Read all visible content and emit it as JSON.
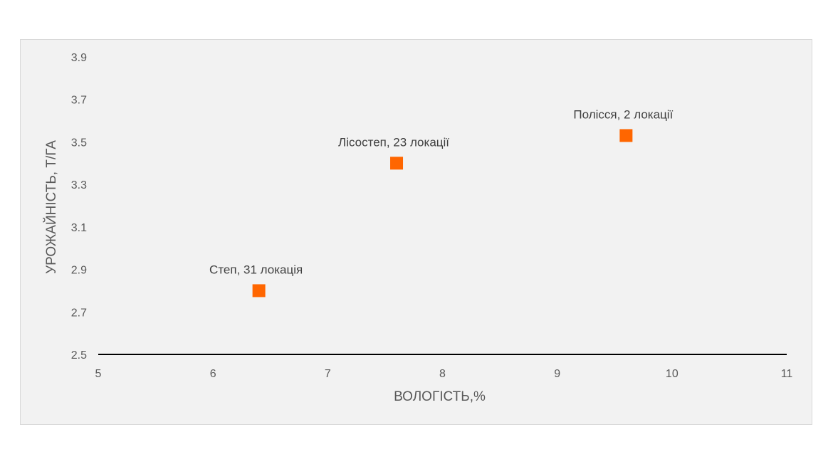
{
  "chart_data": {
    "type": "scatter",
    "title": "",
    "xlabel": "ВОЛОГІСТЬ,%",
    "ylabel": "УРОЖАЙНІСТЬ, Т/ГА",
    "xlim": [
      5,
      11
    ],
    "ylim": [
      2.5,
      3.9
    ],
    "xticks": [
      "5",
      "6",
      "7",
      "8",
      "9",
      "10",
      "11"
    ],
    "yticks": [
      "2.5",
      "2.7",
      "2.9",
      "3.1",
      "3.3",
      "3.5",
      "3.7",
      "3.9"
    ],
    "grid": false,
    "legend": "none",
    "marker": "square",
    "color": "#ff6600",
    "points": [
      {
        "x": 6.4,
        "y": 2.8,
        "label": "Степ, 31 локація"
      },
      {
        "x": 7.6,
        "y": 3.4,
        "label": "Лісостеп, 23 локації"
      },
      {
        "x": 9.6,
        "y": 3.53,
        "label": "Полісся, 2 локації"
      }
    ]
  }
}
